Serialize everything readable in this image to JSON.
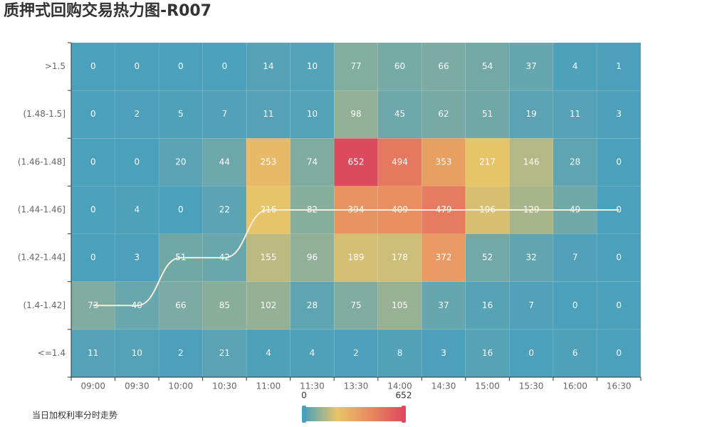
{
  "chart_data": {
    "type": "heatmap",
    "title": "质押式回购交易热力图-R007",
    "categories": [
      "09:00",
      "09:30",
      "10:00",
      "10:30",
      "11:00",
      "11:30",
      "13:30",
      "14:00",
      "14:30",
      "15:00",
      "15:30",
      "16:00",
      "16:30"
    ],
    "y_categories": [
      "<=1.4",
      "(1.4-1.42]",
      "(1.42-1.44]",
      "(1.44-1.46]",
      "(1.46-1.48]",
      "(1.48-1.5]",
      ">1.5"
    ],
    "values": [
      [
        11,
        10,
        2,
        21,
        4,
        4,
        2,
        8,
        3,
        16,
        0,
        6,
        0
      ],
      [
        73,
        40,
        66,
        85,
        102,
        28,
        75,
        105,
        37,
        16,
        7,
        0,
        0
      ],
      [
        0,
        3,
        51,
        42,
        155,
        96,
        189,
        178,
        372,
        52,
        32,
        7,
        0
      ],
      [
        0,
        4,
        0,
        22,
        216,
        82,
        394,
        409,
        479,
        196,
        129,
        49,
        0
      ],
      [
        0,
        0,
        20,
        44,
        253,
        74,
        652,
        494,
        353,
        217,
        146,
        28,
        0
      ],
      [
        0,
        2,
        5,
        7,
        11,
        10,
        98,
        45,
        62,
        51,
        19,
        11,
        3
      ],
      [
        0,
        0,
        0,
        0,
        14,
        10,
        77,
        60,
        66,
        54,
        37,
        4,
        1
      ]
    ],
    "visual_map": {
      "min": 0,
      "max": 652,
      "colors": [
        "#4ba0bc",
        "#e8c468",
        "#e8895f",
        "#dd4a5e"
      ]
    },
    "line": {
      "name": "当日加权利率分时走势",
      "color": "#f6eedb",
      "values": [
        "(1.4-1.42]",
        "(1.4-1.42]",
        "(1.42-1.44]",
        "(1.42-1.44]",
        "(1.44-1.46]",
        "(1.44-1.46]",
        "(1.44-1.46]",
        "(1.44-1.46]",
        "(1.44-1.46]",
        "(1.44-1.46]",
        "(1.44-1.46]",
        "(1.44-1.46]",
        "(1.44-1.46]"
      ]
    }
  }
}
